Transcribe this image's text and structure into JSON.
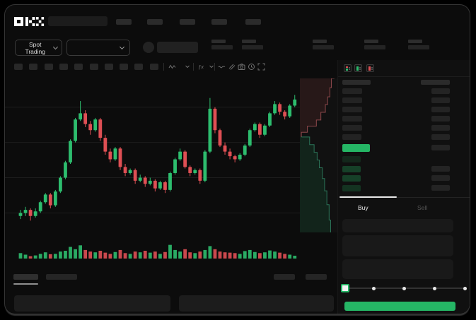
{
  "brand": {
    "logo": "OKX"
  },
  "header": {
    "nav_items": 5,
    "search_placeholder": ""
  },
  "subheader": {
    "market_selector": {
      "label": "Spot Trading"
    },
    "stats_count": 5
  },
  "toolbar": {
    "placeholder_buttons": 10,
    "icons": [
      "candle-style-icon",
      "chevron-down-icon",
      "indicator-fx-icon",
      "line-tool-icon",
      "compare-icon",
      "camera-icon",
      "history-clock-icon",
      "fullscreen-icon"
    ]
  },
  "orderbook": {
    "view_toggles": [
      "book-both-sides-icon",
      "book-bids-only-icon",
      "book-asks-only-icon"
    ],
    "ask_rows": 6,
    "bid_rows": 4,
    "bid_right_bars": [
      false,
      true,
      true,
      true
    ],
    "bid_row_colors": [
      "#13271b",
      "#164028",
      "#164028",
      "#143321"
    ],
    "ask_left_widths": [
      28,
      28,
      28,
      28,
      28,
      27
    ],
    "bid_left_widths": [
      26,
      26,
      26,
      26
    ]
  },
  "trade": {
    "buy_tab": "Buy",
    "sell_tab": "Sell",
    "fields": 3,
    "slider": {
      "stop_count": 5,
      "active_stop": 0
    }
  },
  "colors": {
    "accent_green": "#25b665",
    "candle_green": "#2dbd6e",
    "candle_red": "#df4f54",
    "grid": "#1d1d1d",
    "depth_ask_fill": "rgba(233,84,88,0.10)",
    "depth_ask_line": "rgba(235,115,120,0.55)",
    "depth_bid_fill": "rgba(32,178,108,0.12)",
    "depth_bid_line": "rgba(70,205,155,0.50)",
    "last_price_bg": "#25b665"
  },
  "chart_data": {
    "type": "candlestick",
    "note": "skeleton mock chart, no axis labels visible; values in 0-100 relative price units",
    "price_range": [
      0,
      100
    ],
    "candles": [
      [
        13,
        17,
        11,
        15
      ],
      [
        15,
        19,
        13,
        17
      ],
      [
        17,
        18,
        10,
        13
      ],
      [
        13,
        18,
        12,
        16
      ],
      [
        16,
        23,
        15,
        22
      ],
      [
        22,
        28,
        21,
        27
      ],
      [
        27,
        28,
        18,
        20
      ],
      [
        20,
        30,
        19,
        29
      ],
      [
        29,
        39,
        28,
        38
      ],
      [
        38,
        49,
        37,
        48
      ],
      [
        48,
        63,
        47,
        62
      ],
      [
        62,
        77,
        61,
        76
      ],
      [
        76,
        88,
        75,
        80
      ],
      [
        80,
        82,
        71,
        73
      ],
      [
        73,
        75,
        66,
        69
      ],
      [
        69,
        77,
        68,
        76
      ],
      [
        76,
        77,
        62,
        64
      ],
      [
        64,
        66,
        53,
        55
      ],
      [
        55,
        57,
        48,
        50
      ],
      [
        50,
        58,
        49,
        57
      ],
      [
        57,
        58,
        43,
        45
      ],
      [
        45,
        47,
        39,
        41
      ],
      [
        41,
        44,
        40,
        43
      ],
      [
        43,
        44,
        34,
        36
      ],
      [
        36,
        40,
        35,
        38
      ],
      [
        38,
        39,
        32,
        34
      ],
      [
        34,
        38,
        33,
        36
      ],
      [
        36,
        37,
        29,
        31
      ],
      [
        31,
        36,
        30,
        35
      ],
      [
        35,
        36,
        28,
        30
      ],
      [
        30,
        42,
        29,
        41
      ],
      [
        41,
        51,
        40,
        50
      ],
      [
        50,
        57,
        49,
        55
      ],
      [
        55,
        56,
        44,
        45
      ],
      [
        45,
        46,
        39,
        41
      ],
      [
        41,
        44,
        40,
        43
      ],
      [
        43,
        44,
        34,
        36
      ],
      [
        36,
        56,
        35,
        55
      ],
      [
        55,
        90,
        54,
        83
      ],
      [
        83,
        84,
        67,
        69
      ],
      [
        69,
        70,
        58,
        59
      ],
      [
        59,
        61,
        53,
        55
      ],
      [
        55,
        57,
        50,
        52
      ],
      [
        52,
        53,
        48,
        50
      ],
      [
        50,
        54,
        49,
        53
      ],
      [
        53,
        60,
        52,
        59
      ],
      [
        59,
        70,
        58,
        69
      ],
      [
        69,
        74,
        68,
        73
      ],
      [
        73,
        74,
        64,
        66
      ],
      [
        66,
        73,
        65,
        72
      ],
      [
        72,
        81,
        71,
        80
      ],
      [
        80,
        88,
        79,
        86
      ],
      [
        86,
        87,
        79,
        81
      ],
      [
        81,
        82,
        76,
        78
      ],
      [
        78,
        86,
        77,
        85
      ],
      [
        85,
        92,
        84,
        89
      ]
    ],
    "volumes": [
      35,
      25,
      15,
      20,
      30,
      40,
      28,
      30,
      45,
      50,
      75,
      60,
      85,
      55,
      45,
      40,
      50,
      38,
      30,
      42,
      55,
      35,
      30,
      45,
      40,
      50,
      38,
      45,
      30,
      42,
      88,
      55,
      45,
      60,
      40,
      35,
      45,
      55,
      80,
      60,
      45,
      40,
      38,
      35,
      30,
      48,
      55,
      42,
      35,
      40,
      52,
      45,
      38,
      30,
      25,
      18
    ],
    "gridline_prices": [
      15,
      38,
      61,
      84
    ],
    "depth": {
      "mid_frac": 0.38,
      "ask_steps": [
        [
          0,
          0.92
        ],
        [
          0.06,
          0.84
        ],
        [
          0.12,
          0.8
        ],
        [
          0.17,
          0.74
        ],
        [
          0.22,
          0.68
        ],
        [
          0.27,
          0.56
        ],
        [
          0.31,
          0.44
        ],
        [
          0.35,
          0.2
        ],
        [
          0.38,
          0.04
        ]
      ],
      "bid_steps": [
        [
          0.38,
          0.04
        ],
        [
          0.43,
          0.26
        ],
        [
          0.48,
          0.38
        ],
        [
          0.53,
          0.46
        ],
        [
          0.58,
          0.52
        ],
        [
          0.65,
          0.6
        ],
        [
          0.73,
          0.66
        ],
        [
          0.82,
          0.72
        ],
        [
          0.92,
          0.78
        ],
        [
          1.0,
          0.82
        ]
      ]
    }
  }
}
